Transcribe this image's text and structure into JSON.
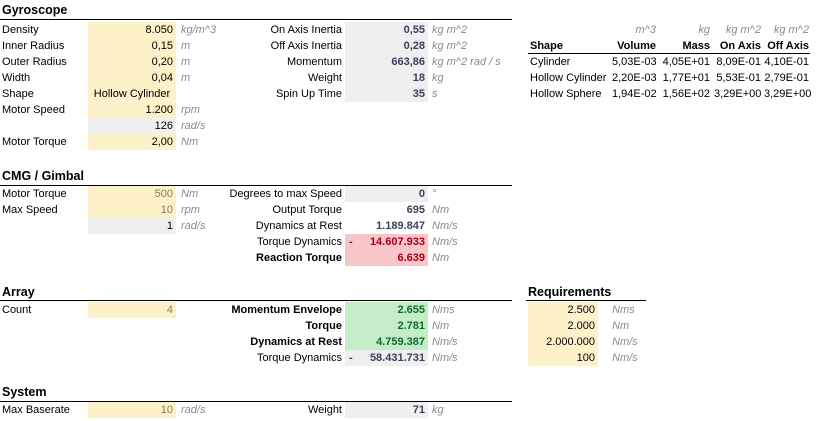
{
  "gyroscope": {
    "title": "Gyroscope",
    "density": {
      "label": "Density",
      "value": "8.050",
      "unit": "kg/m^3"
    },
    "inner_radius": {
      "label": "Inner Radius",
      "value": "0,15",
      "unit": "m"
    },
    "outer_radius": {
      "label": "Outer Radius",
      "value": "0,20",
      "unit": "m"
    },
    "width": {
      "label": "Width",
      "value": "0,04",
      "unit": "m"
    },
    "shape": {
      "label": "Shape",
      "value": "Hollow Cylinder"
    },
    "motor_speed": {
      "label": "Motor Speed",
      "value": "1.200",
      "unit": "rpm"
    },
    "motor_speed_rad": {
      "value": "126",
      "unit": "rad/s"
    },
    "motor_torque": {
      "label": "Motor Torque",
      "value": "2,00",
      "unit": "Nm"
    },
    "on_axis_inertia": {
      "label": "On Axis Inertia",
      "value": "0,55",
      "unit": "kg m^2"
    },
    "off_axis_inertia": {
      "label": "Off Axis Inertia",
      "value": "0,28",
      "unit": "kg m^2"
    },
    "momentum": {
      "label": "Momentum",
      "value": "663,86",
      "unit": "kg m^2 rad / s"
    },
    "weight": {
      "label": "Weight",
      "value": "18",
      "unit": "kg"
    },
    "spin_up_time": {
      "label": "Spin Up Time",
      "value": "35",
      "unit": "s"
    }
  },
  "shape_table": {
    "units": [
      "m^3",
      "kg",
      "kg m^2",
      "kg m^2"
    ],
    "headers": [
      "Shape",
      "Volume",
      "Mass",
      "On Axis",
      "Off Axis"
    ],
    "rows": [
      [
        "Cylinder",
        "5,03E-03",
        "4,05E+01",
        "8,09E-01",
        "4,10E-01"
      ],
      [
        "Hollow Cylinder",
        "2,20E-03",
        "1,77E+01",
        "5,53E-01",
        "2,79E-01"
      ],
      [
        "Hollow Sphere",
        "1,94E-02",
        "1,56E+02",
        "3,29E+00",
        "3,29E+00"
      ]
    ]
  },
  "cmg": {
    "title": "CMG / Gimbal",
    "motor_torque": {
      "label": "Motor Torque",
      "value": "500",
      "unit": "Nm"
    },
    "max_speed": {
      "label": "Max Speed",
      "value": "10",
      "unit": "rpm"
    },
    "max_speed_rad": {
      "value": "1",
      "unit": "rad/s"
    },
    "degrees_to_max": {
      "label": "Degrees to max Speed",
      "value": "0",
      "unit": "°"
    },
    "output_torque": {
      "label": "Output Torque",
      "value": "695",
      "unit": "Nm"
    },
    "dynamics_rest": {
      "label": "Dynamics at Rest",
      "value": "1.189.847",
      "unit": "Nm/s"
    },
    "torque_dynamics": {
      "label": "Torque Dynamics",
      "sign": "-",
      "value": "14.607.933",
      "unit": "Nm/s"
    },
    "reaction_torque": {
      "label": "Reaction Torque",
      "value": "6.639",
      "unit": "Nm"
    }
  },
  "array": {
    "title": "Array",
    "count": {
      "label": "Count",
      "value": "4"
    },
    "momentum_envelope": {
      "label": "Momentum Envelope",
      "value": "2.655",
      "unit": "Nms"
    },
    "torque": {
      "label": "Torque",
      "value": "2.781",
      "unit": "Nm"
    },
    "dynamics_rest": {
      "label": "Dynamics at Rest",
      "value": "4.759.387",
      "unit": "Nm/s"
    },
    "torque_dynamics": {
      "label": "Torque Dynamics",
      "sign": "-",
      "value": "58.431.731",
      "unit": "Nm/s"
    }
  },
  "requirements": {
    "title": "Requirements",
    "rows": [
      {
        "value": "2.500",
        "unit": "Nms"
      },
      {
        "value": "2.000",
        "unit": "Nm"
      },
      {
        "value": "2.000.000",
        "unit": "Nm/s"
      },
      {
        "value": "100",
        "unit": "Nm/s"
      }
    ]
  },
  "system": {
    "title": "System",
    "max_baserate": {
      "label": "Max Baserate",
      "value": "10",
      "unit": "rad/s"
    },
    "weight": {
      "label": "Weight",
      "value": "71",
      "unit": "kg"
    }
  },
  "colors": {
    "input": "#fdf1c9",
    "calc": "#efefef",
    "warn": "#f8c6c8",
    "ok": "#c3ecc9",
    "text_calc": "#37425a",
    "text_warn": "#a5001a",
    "text_ok": "#126a2a"
  }
}
